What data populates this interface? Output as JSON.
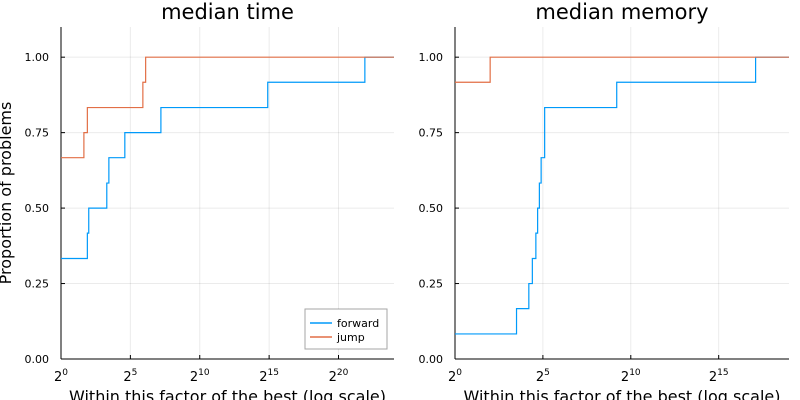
{
  "chart_data": [
    {
      "type": "line",
      "title": "median time",
      "xlabel": "Within this factor of the best (log scale)",
      "ylabel": "Proportion of problems",
      "xscale": "log2",
      "xlim_exp": [
        0,
        24
      ],
      "ylim": [
        0,
        1.1
      ],
      "xticks": [
        {
          "base": "2",
          "exp": "0"
        },
        {
          "base": "2",
          "exp": "5"
        },
        {
          "base": "2",
          "exp": "10"
        },
        {
          "base": "2",
          "exp": "15"
        },
        {
          "base": "2",
          "exp": "20"
        }
      ],
      "yticks": [
        "0.00",
        "0.25",
        "0.50",
        "0.75",
        "1.00"
      ],
      "grid": true,
      "legend": "bottom-right",
      "series": [
        {
          "name": "forward",
          "color": "#009AFA",
          "steps": [
            [
              0,
              0.333
            ],
            [
              1.9,
              0.417
            ],
            [
              2.0,
              0.5
            ],
            [
              3.3,
              0.583
            ],
            [
              3.45,
              0.667
            ],
            [
              4.6,
              0.75
            ],
            [
              7.2,
              0.833
            ],
            [
              14.9,
              0.917
            ],
            [
              21.9,
              1.0
            ]
          ]
        },
        {
          "name": "jump",
          "color": "#E26F46",
          "steps": [
            [
              0,
              0.667
            ],
            [
              1.65,
              0.75
            ],
            [
              1.9,
              0.833
            ],
            [
              5.9,
              0.917
            ],
            [
              6.1,
              1.0
            ]
          ]
        }
      ]
    },
    {
      "type": "line",
      "title": "median memory",
      "xlabel": "Within this factor of the best (log scale)",
      "xscale": "log2",
      "xlim_exp": [
        0,
        19
      ],
      "ylim": [
        0,
        1.1
      ],
      "xticks": [
        {
          "base": "2",
          "exp": "0"
        },
        {
          "base": "2",
          "exp": "5"
        },
        {
          "base": "2",
          "exp": "10"
        },
        {
          "base": "2",
          "exp": "15"
        }
      ],
      "yticks": [
        "0.00",
        "0.25",
        "0.50",
        "0.75",
        "1.00"
      ],
      "grid": true,
      "series": [
        {
          "name": "forward",
          "color": "#009AFA",
          "steps": [
            [
              0,
              0.083
            ],
            [
              3.5,
              0.167
            ],
            [
              4.2,
              0.25
            ],
            [
              4.4,
              0.333
            ],
            [
              4.6,
              0.417
            ],
            [
              4.7,
              0.5
            ],
            [
              4.8,
              0.583
            ],
            [
              4.9,
              0.667
            ],
            [
              5.1,
              0.833
            ],
            [
              9.2,
              0.917
            ],
            [
              17.1,
              1.0
            ]
          ]
        },
        {
          "name": "jump",
          "color": "#E26F46",
          "steps": [
            [
              0,
              0.917
            ],
            [
              2.0,
              1.0
            ]
          ]
        }
      ]
    }
  ]
}
